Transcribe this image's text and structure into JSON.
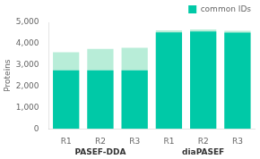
{
  "chart_data": {
    "type": "bar",
    "ylabel": "Proteins",
    "categories": [
      "R1",
      "R2",
      "R3",
      "R1",
      "R2",
      "R3"
    ],
    "groups": [
      "PASEF-DDA",
      "diaPASEF"
    ],
    "series": [
      {
        "color": "#B8EDD8",
        "values": [
          3600,
          3750,
          3800,
          4620,
          4660,
          4600
        ]
      },
      {
        "name": "common IDs",
        "color": "#00C9A7",
        "values": [
          2750,
          2750,
          2750,
          4530,
          4570,
          4520
        ]
      }
    ],
    "ylim": [
      0,
      5000
    ],
    "yticks": [
      0,
      1000,
      2000,
      3000,
      4000,
      5000
    ],
    "legend": "upper right",
    "grid": false
  }
}
